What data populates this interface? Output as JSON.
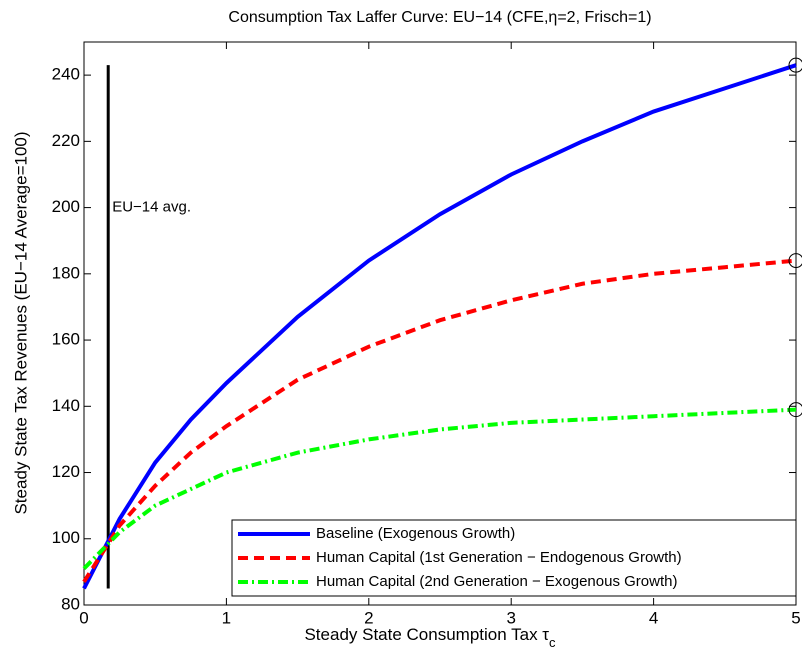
{
  "chart_data": {
    "type": "line",
    "title": "Consumption Tax Laffer Curve: EU−14 (CFE,η=2, Frisch=1)",
    "xlabel": "Steady State Consumption Tax τ",
    "xlabel_subscript": "c",
    "ylabel": "Steady State Tax Revenues (EU−14 Average=100)",
    "x": [
      0,
      0.25,
      0.5,
      0.75,
      1,
      1.5,
      2,
      2.5,
      3,
      3.5,
      4,
      4.5,
      5
    ],
    "series": [
      {
        "name": "Baseline (Exogenous Growth)",
        "color": "#0000ff",
        "dash": "solid",
        "values": [
          85,
          106,
          123,
          136,
          147,
          167,
          184,
          198,
          210,
          220,
          229,
          236,
          243
        ]
      },
      {
        "name": "Human Capital (1st Generation − Endogenous Growth)",
        "color": "#ff0000",
        "dash": "dashed",
        "values": [
          87,
          104,
          116,
          126,
          134,
          148,
          158,
          166,
          172,
          177,
          180,
          182,
          184
        ]
      },
      {
        "name": "Human Capital (2nd Generation − Exogenous Growth)",
        "color": "#00ff00",
        "dash": "dashdot",
        "values": [
          91,
          102,
          110,
          115,
          120,
          126,
          130,
          133,
          135,
          136,
          137,
          138,
          139
        ]
      }
    ],
    "end_markers": true,
    "vline": {
      "x": 0.17,
      "y": [
        85,
        243
      ],
      "label": "EU−14 avg.",
      "label_y": 200
    },
    "xlim": [
      0,
      5
    ],
    "xticks": [
      0,
      1,
      2,
      3,
      4,
      5
    ],
    "ylim": [
      80,
      250
    ],
    "yticks": [
      80,
      100,
      120,
      140,
      160,
      180,
      200,
      220,
      240
    ],
    "grid": false,
    "legend": "lower right"
  }
}
